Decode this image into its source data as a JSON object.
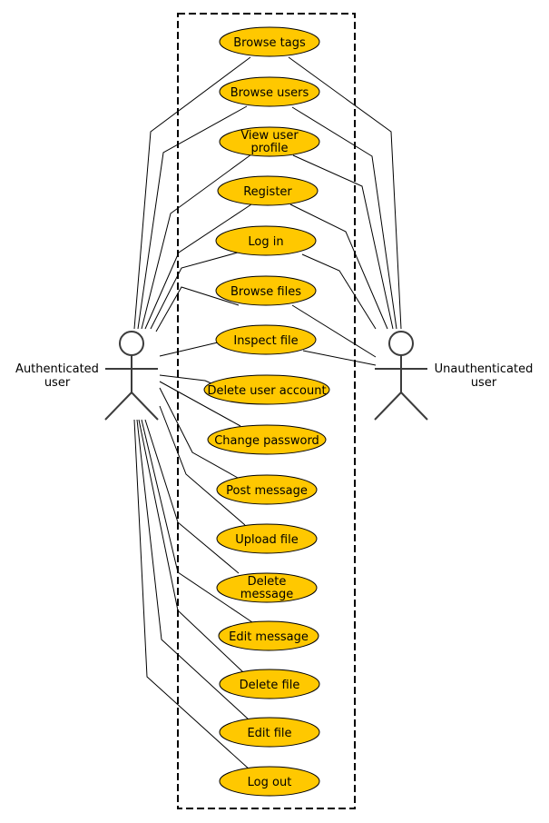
{
  "diagram": {
    "type": "use-case",
    "colors": {
      "usecase_fill": "#ffc800",
      "usecase_stroke": "#000000",
      "actor_stroke": "#3c3c3c",
      "line": "#000000",
      "boundary": "#000000"
    },
    "actors": {
      "left": {
        "label_line1": "Authenticated",
        "label_line2": "user"
      },
      "right": {
        "label_line1": "Unauthenticated",
        "label_line2": "user"
      }
    },
    "usecases": [
      {
        "id": "browse-tags",
        "line1": "Browse tags",
        "line2": ""
      },
      {
        "id": "browse-users",
        "line1": "Browse users",
        "line2": ""
      },
      {
        "id": "view-user-profile",
        "line1": "View user",
        "line2": "profile"
      },
      {
        "id": "register",
        "line1": "Register",
        "line2": ""
      },
      {
        "id": "log-in",
        "line1": "Log in",
        "line2": ""
      },
      {
        "id": "browse-files",
        "line1": "Browse files",
        "line2": ""
      },
      {
        "id": "inspect-file",
        "line1": "Inspect file",
        "line2": ""
      },
      {
        "id": "delete-user-account",
        "line1": "Delete user account",
        "line2": ""
      },
      {
        "id": "change-password",
        "line1": "Change password",
        "line2": ""
      },
      {
        "id": "post-message",
        "line1": "Post message",
        "line2": ""
      },
      {
        "id": "upload-file",
        "line1": "Upload file",
        "line2": ""
      },
      {
        "id": "delete-message",
        "line1": "Delete",
        "line2": "message"
      },
      {
        "id": "edit-message",
        "line1": "Edit message",
        "line2": ""
      },
      {
        "id": "delete-file",
        "line1": "Delete file",
        "line2": ""
      },
      {
        "id": "edit-file",
        "line1": "Edit file",
        "line2": ""
      },
      {
        "id": "log-out",
        "line1": "Log out",
        "line2": ""
      }
    ],
    "associations": {
      "left_actor": [
        "browse-tags",
        "browse-users",
        "view-user-profile",
        "register",
        "log-in",
        "browse-files",
        "inspect-file",
        "delete-user-account",
        "change-password",
        "post-message",
        "upload-file",
        "delete-message",
        "edit-message",
        "delete-file",
        "edit-file",
        "log-out"
      ],
      "right_actor": [
        "browse-tags",
        "browse-users",
        "view-user-profile",
        "register",
        "log-in",
        "browse-files",
        "inspect-file"
      ]
    }
  }
}
